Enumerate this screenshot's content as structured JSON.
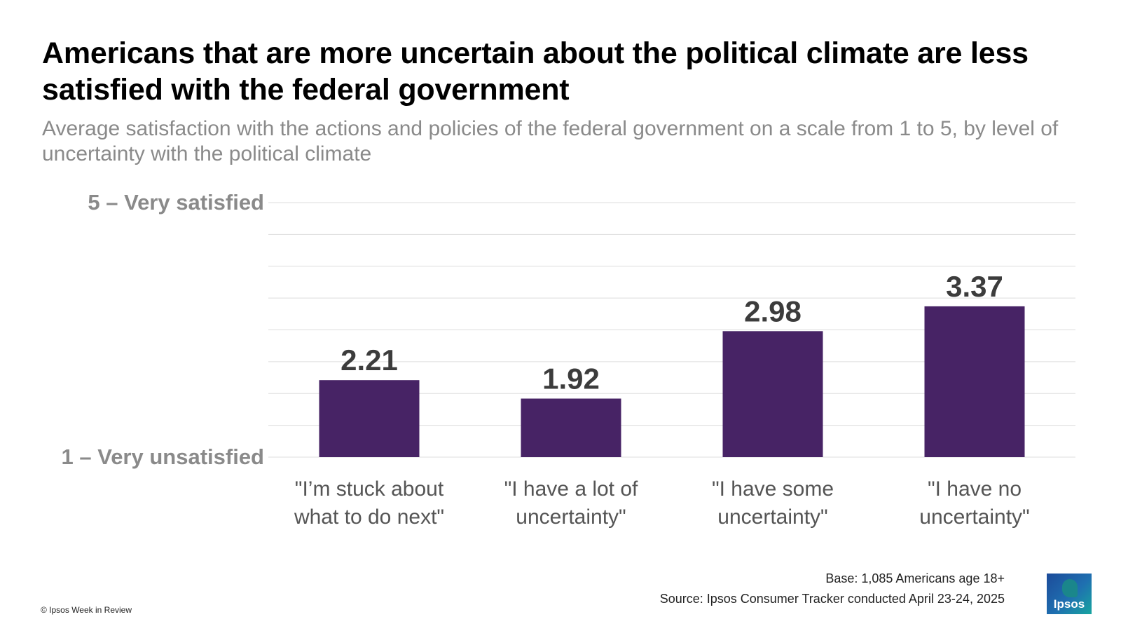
{
  "title": "Americans that are more uncertain about the political climate are less satisfied with the federal government",
  "subtitle": "Average satisfaction with the actions and policies of the federal government on a scale from 1 to 5, by level of uncertainty with the political climate",
  "colors": {
    "bar": "#472365",
    "grid": "#dddddd",
    "axis_label": "#8a8a8a",
    "value_label": "#3c3c3c",
    "category_label": "#555555"
  },
  "chart_data": {
    "type": "bar",
    "categories": [
      "\"I’m stuck about what to do next\"",
      "\"I have a lot of uncertainty\"",
      "\"I have some uncertainty\"",
      "\"I have no uncertainty\""
    ],
    "category_lines": [
      [
        "\"I’m stuck about",
        "what to do next\""
      ],
      [
        "\"I have a lot of",
        "uncertainty\""
      ],
      [
        "\"I have some",
        "uncertainty\""
      ],
      [
        "\"I have no",
        "uncertainty\""
      ]
    ],
    "values": [
      2.21,
      1.92,
      2.98,
      3.37
    ],
    "value_labels": [
      "2.21",
      "1.92",
      "2.98",
      "3.37"
    ],
    "ylim": [
      1,
      5
    ],
    "y_tick_step": 0.5,
    "y_axis_labels": {
      "top": "5 – Very satisfied",
      "bottom": "1 – Very unsatisfied"
    },
    "grid": true,
    "legend": "none"
  },
  "footer": {
    "base": "Base: 1,085 Americans age 18+",
    "source": "Source: Ipsos Consumer Tracker conducted April 23-24, 2025",
    "copyright": "© Ipsos Week in Review",
    "logo_text": "Ipsos"
  }
}
